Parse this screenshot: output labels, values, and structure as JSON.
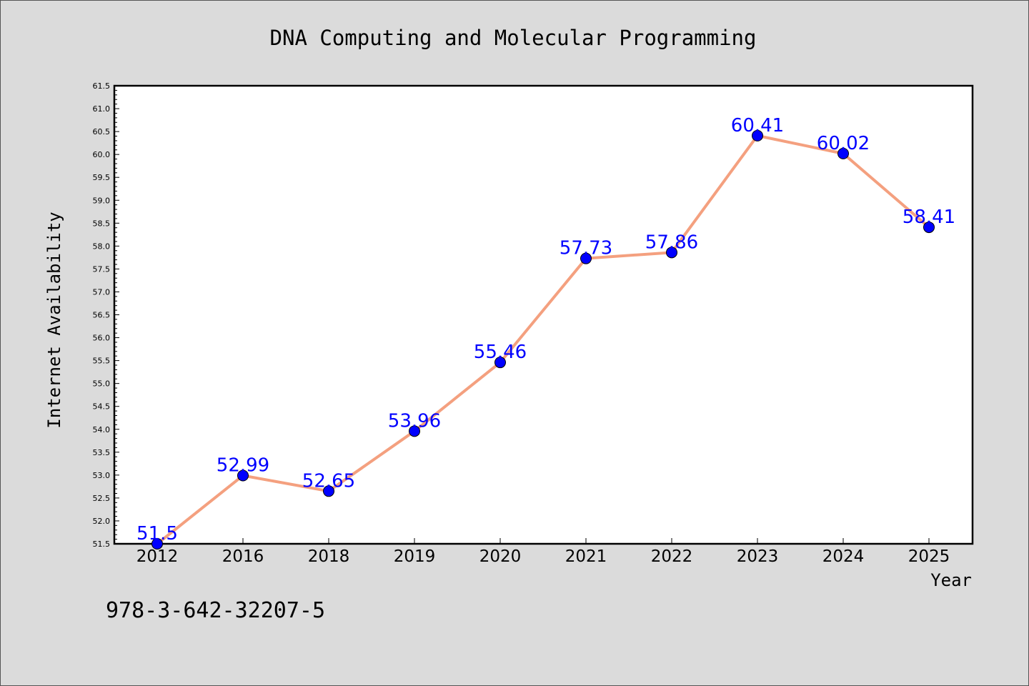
{
  "chart_data": {
    "type": "line",
    "title": "DNA Computing and Molecular Programming",
    "xlabel": "Year",
    "ylabel": "Internet Availability",
    "categories": [
      "2012",
      "2016",
      "2018",
      "2019",
      "2020",
      "2021",
      "2022",
      "2023",
      "2024",
      "2025"
    ],
    "series": [
      {
        "values": [
          51.5,
          52.99,
          52.65,
          53.96,
          55.46,
          57.73,
          57.86,
          60.41,
          60.02,
          58.41
        ],
        "labels": [
          "51.5",
          "52.99",
          "52.65",
          "53.96",
          "55.46",
          "57.73",
          "57.86",
          "60.41",
          "60.02",
          "58.41"
        ]
      }
    ],
    "ylim": [
      51.5,
      61.5
    ],
    "ytick_step": 0.5,
    "grid": false,
    "legend": "none",
    "colors": {
      "line": "#f4a07f",
      "marker": "#0000ff",
      "data_label": "#0000ff",
      "plot_background": "#ffffff",
      "figure_background": "#dbdbdb"
    }
  },
  "footnote": "978-3-642-32207-5"
}
